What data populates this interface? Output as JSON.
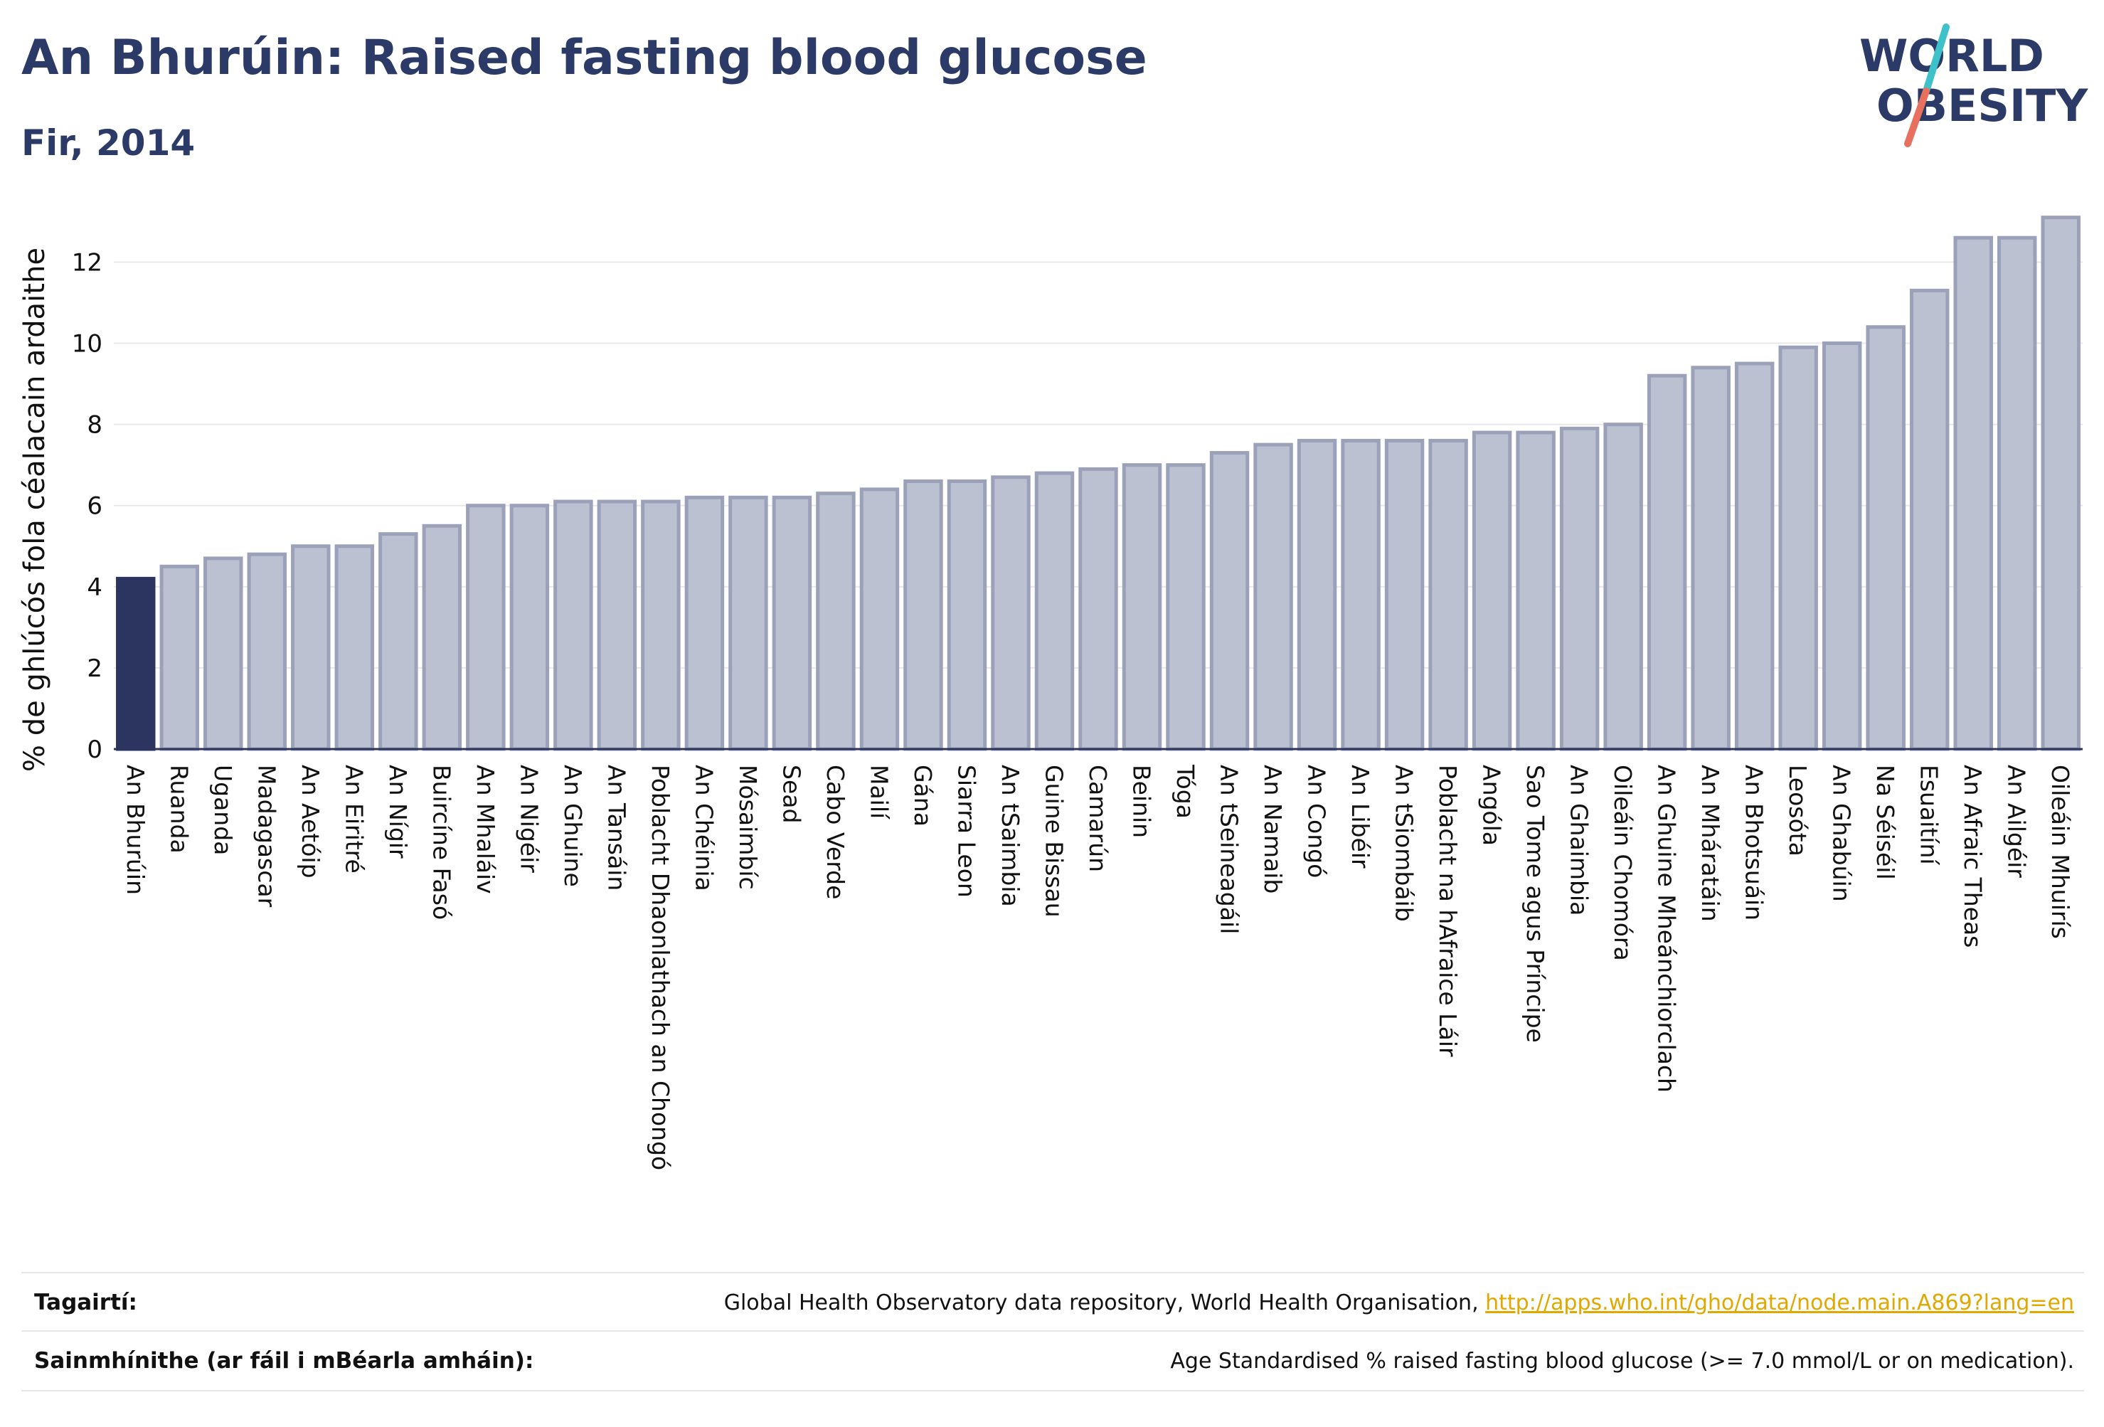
{
  "header": {
    "title": "An Bhurúin: Raised fasting blood glucose",
    "subtitle": "Fir, 2014"
  },
  "logo": {
    "line1": "WORLD",
    "line2": "OBESITY",
    "slash_color_top": "#3ec1c9",
    "slash_color_bottom": "#e8705f"
  },
  "footer": {
    "references_label": "Tagairtí:",
    "references_text": "Global Health Observatory data repository, World Health Organisation, ",
    "references_link": "http://apps.who.int/gho/data/node.main.A869?lang=en",
    "definitions_label": "Sainmhínithe (ar fáil i mBéarla amháin):",
    "definitions_text": "Age Standardised % raised fasting blood glucose (>= 7.0 mmol/L or on medication)."
  },
  "colors": {
    "highlight_bar": "#2b3560",
    "bar_fill": "#bcc1d1",
    "bar_stroke": "#9aa1b8",
    "gridline": "#e8e8e8",
    "axis": "#2b3560"
  },
  "chart_data": {
    "type": "bar",
    "ylabel": "% de ghlúcós fola céalacain ardaithe",
    "ylim": [
      0,
      13.2
    ],
    "yticks": [
      0,
      2,
      4,
      6,
      8,
      10,
      12
    ],
    "grid": true,
    "highlight": "An Bhurúin",
    "categories": [
      "An Bhurúin",
      "Ruanda",
      "Uganda",
      "Madagascar",
      "An Aetóip",
      "An Eiritré",
      "An Nígir",
      "Buircíne Fasó",
      "An Mhaláiv",
      "An Nigéir",
      "An Ghuine",
      "An Tansáin",
      "Poblacht Dhaonlathach an Chongó",
      "An Chéinia",
      "Mósaimbíc",
      "Sead",
      "Cabo Verde",
      "Mailí",
      "Gána",
      "Siarra Leon",
      "An tSaimbia",
      "Guine Bissau",
      "Camarún",
      "Beinin",
      "Tóga",
      "An tSeineagáil",
      "An Namaib",
      "An Congó",
      "An Libéir",
      "An tSiombáib",
      "Poblacht na hAfraice Láir",
      "Angóla",
      "Sao Tome agus Príncipe",
      "An Ghaimbia",
      "Oileáin Chomóra",
      "An Ghuine Mheánchiorclach",
      "An Mháratáin",
      "An Bhotsuáin",
      "Leosóta",
      "An Ghabúin",
      "Na Séiséil",
      "Esuaitíní",
      "An Afraic Theas",
      "An Ailgéir",
      "Oileáin Mhuirís"
    ],
    "values": [
      4.2,
      4.5,
      4.7,
      4.8,
      5.0,
      5.0,
      5.3,
      5.5,
      6.0,
      6.0,
      6.1,
      6.1,
      6.1,
      6.2,
      6.2,
      6.2,
      6.3,
      6.4,
      6.6,
      6.6,
      6.7,
      6.8,
      6.9,
      7.0,
      7.0,
      7.3,
      7.5,
      7.6,
      7.6,
      7.6,
      7.6,
      7.8,
      7.8,
      7.9,
      8.0,
      9.2,
      9.4,
      9.5,
      9.9,
      10.0,
      10.4,
      11.3,
      12.6,
      12.6,
      13.1
    ]
  }
}
